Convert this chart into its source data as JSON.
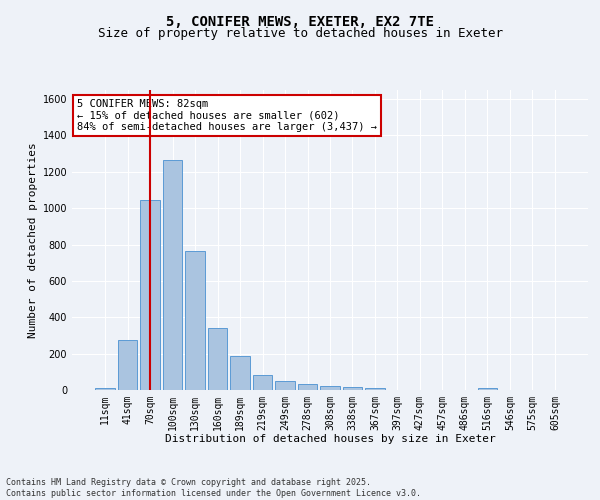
{
  "title_line1": "5, CONIFER MEWS, EXETER, EX2 7TE",
  "title_line2": "Size of property relative to detached houses in Exeter",
  "xlabel": "Distribution of detached houses by size in Exeter",
  "ylabel": "Number of detached properties",
  "categories": [
    "11sqm",
    "41sqm",
    "70sqm",
    "100sqm",
    "130sqm",
    "160sqm",
    "189sqm",
    "219sqm",
    "249sqm",
    "278sqm",
    "308sqm",
    "338sqm",
    "367sqm",
    "397sqm",
    "427sqm",
    "457sqm",
    "486sqm",
    "516sqm",
    "546sqm",
    "575sqm",
    "605sqm"
  ],
  "values": [
    10,
    275,
    1045,
    1265,
    765,
    340,
    185,
    80,
    48,
    33,
    22,
    15,
    10,
    0,
    0,
    0,
    0,
    10,
    0,
    0,
    0
  ],
  "bar_color": "#aac4e0",
  "bar_edge_color": "#5b9bd5",
  "annotation_text": "5 CONIFER MEWS: 82sqm\n← 15% of detached houses are smaller (602)\n84% of semi-detached houses are larger (3,437) →",
  "annotation_box_color": "#ffffff",
  "annotation_border_color": "#cc0000",
  "vline_x": 2.0,
  "vline_color": "#cc0000",
  "ylim": [
    0,
    1650
  ],
  "yticks": [
    0,
    200,
    400,
    600,
    800,
    1000,
    1200,
    1400,
    1600
  ],
  "background_color": "#eef2f8",
  "grid_color": "#ffffff",
  "footnote": "Contains HM Land Registry data © Crown copyright and database right 2025.\nContains public sector information licensed under the Open Government Licence v3.0.",
  "title_fontsize": 10,
  "subtitle_fontsize": 9,
  "label_fontsize": 8,
  "tick_fontsize": 7,
  "footnote_fontsize": 6,
  "annot_fontsize": 7.5
}
